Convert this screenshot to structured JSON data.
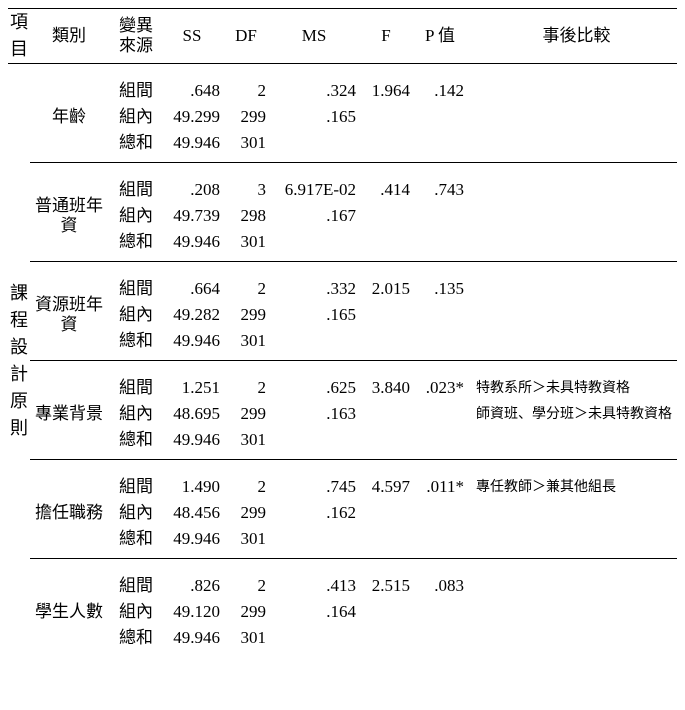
{
  "header": {
    "project": "項目",
    "category": "類別",
    "source_l1": "變異",
    "source_l2": "來源",
    "ss": "SS",
    "df": "DF",
    "ms": "MS",
    "f": "F",
    "p": "P 值",
    "post": "事後比較"
  },
  "project_label": "課程設計原則",
  "src_labels": {
    "between": "組間",
    "within": "組內",
    "total": "總和"
  },
  "groups": [
    {
      "category": "年齡",
      "rows": [
        {
          "src": "between",
          "ss": ".648",
          "df": "2",
          "ms": ".324",
          "f": "1.964",
          "p": ".142"
        },
        {
          "src": "within",
          "ss": "49.299",
          "df": "299",
          "ms": ".165"
        },
        {
          "src": "total",
          "ss": "49.946",
          "df": "301"
        }
      ]
    },
    {
      "category_l1": "普通班",
      "category_l2": "年資",
      "rows": [
        {
          "src": "between",
          "ss": ".208",
          "df": "3",
          "ms": "6.917E-02",
          "f": ".414",
          "p": ".743"
        },
        {
          "src": "within",
          "ss": "49.739",
          "df": "298",
          "ms": ".167"
        },
        {
          "src": "total",
          "ss": "49.946",
          "df": "301"
        }
      ]
    },
    {
      "category_l1": "資源班",
      "category_l2": "年資",
      "rows": [
        {
          "src": "between",
          "ss": ".664",
          "df": "2",
          "ms": ".332",
          "f": "2.015",
          "p": ".135"
        },
        {
          "src": "within",
          "ss": "49.282",
          "df": "299",
          "ms": ".165"
        },
        {
          "src": "total",
          "ss": "49.946",
          "df": "301"
        }
      ]
    },
    {
      "category_l1": "專業",
      "category_l2": "背景",
      "rows": [
        {
          "src": "between",
          "ss": "1.251",
          "df": "2",
          "ms": ".625",
          "f": "3.840",
          "p": ".023*",
          "post": "特教系所＞未具特教資格"
        },
        {
          "src": "within",
          "ss": "48.695",
          "df": "299",
          "ms": ".163",
          "post": "師資班、學分班＞未具特教資格"
        },
        {
          "src": "total",
          "ss": "49.946",
          "df": "301"
        }
      ]
    },
    {
      "category_l1": "擔任",
      "category_l2": "職務",
      "rows": [
        {
          "src": "between",
          "ss": "1.490",
          "df": "2",
          "ms": ".745",
          "f": "4.597",
          "p": ".011*",
          "post": "專任教師＞兼其他組長"
        },
        {
          "src": "within",
          "ss": "48.456",
          "df": "299",
          "ms": ".162"
        },
        {
          "src": "total",
          "ss": "49.946",
          "df": "301"
        }
      ]
    },
    {
      "category_l1": "學生",
      "category_l2": "人數",
      "rows": [
        {
          "src": "between",
          "ss": ".826",
          "df": "2",
          "ms": ".413",
          "f": "2.515",
          "p": ".083"
        },
        {
          "src": "within",
          "ss": "49.120",
          "df": "299",
          "ms": ".164"
        },
        {
          "src": "total",
          "ss": "49.946",
          "df": "301"
        }
      ]
    }
  ]
}
